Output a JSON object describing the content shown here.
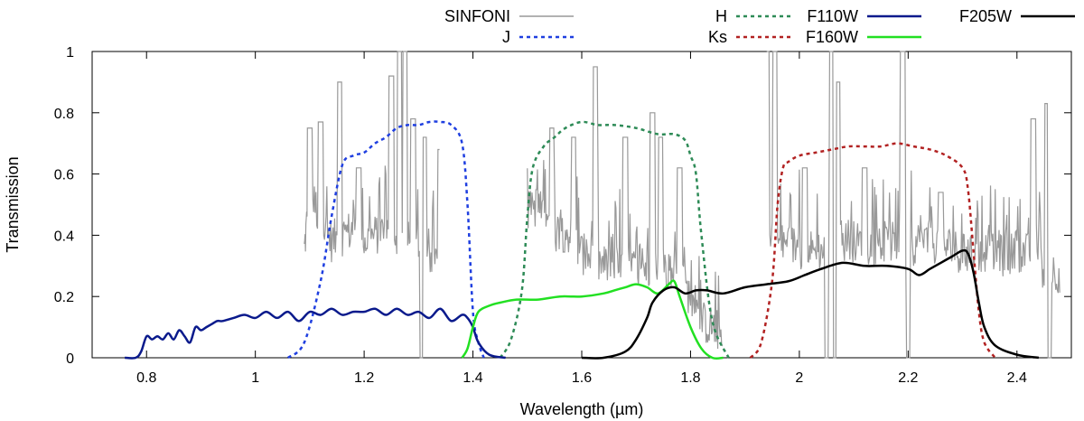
{
  "chart_data": {
    "type": "line",
    "xlabel": "Wavelength (µm)",
    "ylabel": "Transmission",
    "xlim": [
      0.7,
      2.5
    ],
    "ylim": [
      0,
      1
    ],
    "x_ticks": [
      0.8,
      1,
      1.2,
      1.4,
      1.6,
      1.8,
      2,
      2.2,
      2.4
    ],
    "x_tick_labels": [
      "0.8",
      "1",
      "1.2",
      "1.4",
      "1.6",
      "1.8",
      "2",
      "2.2",
      "2.4"
    ],
    "y_ticks": [
      0,
      0.2,
      0.4,
      0.6,
      0.8,
      1
    ],
    "y_tick_labels": [
      "0",
      "0.2",
      "0.4",
      "0.6",
      "0.8",
      "1"
    ],
    "legend_position": "top",
    "series": [
      {
        "name": "SINFONI",
        "color": "#999999",
        "dash": "solid",
        "width": 1.2,
        "noisy": true,
        "x": [
          1.09,
          1.1,
          1.12,
          1.14,
          1.16,
          1.18,
          1.2,
          1.22,
          1.24,
          1.26,
          1.28,
          1.3,
          1.32,
          1.34,
          1.36,
          1.38,
          1.4,
          1.42,
          1.44,
          1.46,
          1.48,
          1.5,
          1.52,
          1.54,
          1.56,
          1.58,
          1.6,
          1.62,
          1.64,
          1.66,
          1.68,
          1.7,
          1.72,
          1.74,
          1.76,
          1.78,
          1.8,
          1.82,
          1.84,
          1.86,
          1.88,
          1.9,
          1.92,
          1.94,
          1.96,
          1.98,
          2.0,
          2.02,
          2.04,
          2.06,
          2.08,
          2.1,
          2.12,
          2.14,
          2.16,
          2.18,
          2.2,
          2.22,
          2.24,
          2.26,
          2.28,
          2.3,
          2.32,
          2.34,
          2.36,
          2.38,
          2.4,
          2.42,
          2.44,
          2.46,
          2.48
        ],
        "y": [
          0.35,
          0.55,
          0.45,
          0.38,
          0.4,
          0.42,
          0.38,
          0.4,
          0.42,
          0.4,
          0.38,
          0.35,
          0.34,
          0.32,
          null,
          null,
          null,
          null,
          null,
          null,
          null,
          0.48,
          0.5,
          0.4,
          0.42,
          0.4,
          0.34,
          0.32,
          0.3,
          0.3,
          0.3,
          0.29,
          0.3,
          0.3,
          0.28,
          0.26,
          0.2,
          0.12,
          0.1,
          0.08,
          null,
          null,
          null,
          0.38,
          0.37,
          0.37,
          0.36,
          0.35,
          0.35,
          0.36,
          0.38,
          0.38,
          0.37,
          0.37,
          0.38,
          0.37,
          0.36,
          0.38,
          0.38,
          0.37,
          0.36,
          0.34,
          0.33,
          0.35,
          0.34,
          0.33,
          0.35,
          0.34,
          0.3,
          0.28,
          0.28
        ],
        "spikes": [
          [
            1.1,
            0.75
          ],
          [
            1.12,
            0.77
          ],
          [
            1.155,
            0.9
          ],
          [
            1.19,
            0.62
          ],
          [
            1.25,
            0.92
          ],
          [
            1.265,
            1.0
          ],
          [
            1.275,
            1.0
          ],
          [
            1.29,
            0.78
          ],
          [
            1.31,
            0.72
          ],
          [
            1.34,
            0.68
          ],
          [
            1.545,
            0.75
          ],
          [
            1.585,
            0.72
          ],
          [
            1.625,
            0.95
          ],
          [
            1.68,
            0.72
          ],
          [
            1.73,
            0.8
          ],
          [
            1.745,
            0.72
          ],
          [
            1.78,
            0.62
          ],
          [
            1.94,
            1.0
          ],
          [
            1.955,
            1.0
          ],
          [
            2.01,
            0.62
          ],
          [
            2.06,
            1.0
          ],
          [
            2.07,
            0.9
          ],
          [
            2.12,
            0.62
          ],
          [
            2.19,
            1.0
          ],
          [
            2.26,
            0.54
          ],
          [
            2.43,
            0.78
          ],
          [
            2.455,
            0.83
          ]
        ],
        "dips": [
          1.305,
          1.375,
          2.05,
          2.065,
          2.2,
          2.46
        ]
      },
      {
        "name": "J",
        "color": "#1f3fe0",
        "dash": "4,4",
        "width": 2.5,
        "x": [
          1.06,
          1.09,
          1.12,
          1.14,
          1.16,
          1.18,
          1.2,
          1.22,
          1.24,
          1.26,
          1.28,
          1.3,
          1.32,
          1.34,
          1.36,
          1.38,
          1.39,
          1.4,
          1.41,
          1.42
        ],
        "y": [
          0.0,
          0.05,
          0.25,
          0.46,
          0.63,
          0.66,
          0.67,
          0.7,
          0.72,
          0.75,
          0.76,
          0.76,
          0.77,
          0.77,
          0.76,
          0.7,
          0.5,
          0.15,
          0.05,
          0.0
        ]
      },
      {
        "name": "H",
        "color": "#2e8b57",
        "dash": "4,4",
        "width": 2.5,
        "x": [
          1.45,
          1.47,
          1.49,
          1.5,
          1.51,
          1.53,
          1.55,
          1.57,
          1.6,
          1.63,
          1.66,
          1.7,
          1.74,
          1.77,
          1.79,
          1.8,
          1.81,
          1.82,
          1.84,
          1.87
        ],
        "y": [
          0.0,
          0.06,
          0.22,
          0.46,
          0.62,
          0.69,
          0.72,
          0.75,
          0.77,
          0.76,
          0.76,
          0.75,
          0.73,
          0.73,
          0.71,
          0.66,
          0.6,
          0.4,
          0.12,
          0.0
        ]
      },
      {
        "name": "Ks",
        "color": "#b22222",
        "dash": "4,4",
        "width": 2.5,
        "x": [
          1.91,
          1.93,
          1.95,
          1.96,
          1.97,
          1.98,
          2.0,
          2.03,
          2.06,
          2.09,
          2.12,
          2.15,
          2.18,
          2.21,
          2.24,
          2.27,
          2.3,
          2.31,
          2.32,
          2.33,
          2.34,
          2.36
        ],
        "y": [
          0.0,
          0.05,
          0.25,
          0.5,
          0.62,
          0.64,
          0.66,
          0.67,
          0.68,
          0.69,
          0.69,
          0.69,
          0.7,
          0.69,
          0.68,
          0.66,
          0.62,
          0.55,
          0.35,
          0.15,
          0.05,
          0.0
        ]
      },
      {
        "name": "F110W",
        "color": "#0a1a8c",
        "dash": "solid",
        "width": 2.5,
        "x": [
          0.76,
          0.78,
          0.79,
          0.8,
          0.81,
          0.82,
          0.83,
          0.84,
          0.85,
          0.86,
          0.87,
          0.88,
          0.89,
          0.9,
          0.91,
          0.92,
          0.93,
          0.94,
          0.96,
          0.98,
          1.0,
          1.02,
          1.04,
          1.06,
          1.08,
          1.1,
          1.12,
          1.14,
          1.16,
          1.18,
          1.2,
          1.22,
          1.24,
          1.26,
          1.28,
          1.3,
          1.32,
          1.34,
          1.36,
          1.38,
          1.39,
          1.4,
          1.41,
          1.43,
          1.46
        ],
        "y": [
          0.0,
          0.0,
          0.02,
          0.07,
          0.06,
          0.07,
          0.06,
          0.08,
          0.06,
          0.09,
          0.07,
          0.05,
          0.1,
          0.09,
          0.1,
          0.11,
          0.12,
          0.12,
          0.13,
          0.14,
          0.13,
          0.15,
          0.13,
          0.15,
          0.12,
          0.15,
          0.14,
          0.16,
          0.14,
          0.15,
          0.15,
          0.16,
          0.14,
          0.16,
          0.14,
          0.15,
          0.13,
          0.16,
          0.12,
          0.14,
          0.13,
          0.1,
          0.05,
          0.01,
          0.0
        ]
      },
      {
        "name": "F160W",
        "color": "#22e022",
        "dash": "solid",
        "width": 2.5,
        "x": [
          1.38,
          1.39,
          1.4,
          1.41,
          1.43,
          1.45,
          1.48,
          1.52,
          1.56,
          1.6,
          1.64,
          1.66,
          1.68,
          1.7,
          1.72,
          1.74,
          1.76,
          1.77,
          1.78,
          1.8,
          1.82,
          1.84,
          1.86
        ],
        "y": [
          0.0,
          0.03,
          0.1,
          0.15,
          0.17,
          0.18,
          0.19,
          0.19,
          0.2,
          0.2,
          0.21,
          0.22,
          0.23,
          0.24,
          0.23,
          0.21,
          0.24,
          0.25,
          0.2,
          0.1,
          0.03,
          0.0,
          0.0
        ]
      },
      {
        "name": "F205W",
        "color": "#000000",
        "dash": "solid",
        "width": 2.5,
        "x": [
          1.6,
          1.64,
          1.68,
          1.7,
          1.72,
          1.73,
          1.75,
          1.77,
          1.79,
          1.81,
          1.83,
          1.86,
          1.9,
          1.94,
          1.98,
          2.01,
          2.04,
          2.08,
          2.12,
          2.16,
          2.2,
          2.22,
          2.24,
          2.26,
          2.28,
          2.3,
          2.31,
          2.32,
          2.33,
          2.34,
          2.36,
          2.4,
          2.44
        ],
        "y": [
          0.0,
          0.0,
          0.02,
          0.06,
          0.13,
          0.18,
          0.22,
          0.23,
          0.21,
          0.22,
          0.22,
          0.21,
          0.23,
          0.24,
          0.25,
          0.27,
          0.29,
          0.31,
          0.3,
          0.3,
          0.29,
          0.27,
          0.29,
          0.31,
          0.33,
          0.35,
          0.34,
          0.28,
          0.18,
          0.1,
          0.04,
          0.01,
          0.0
        ]
      }
    ]
  }
}
